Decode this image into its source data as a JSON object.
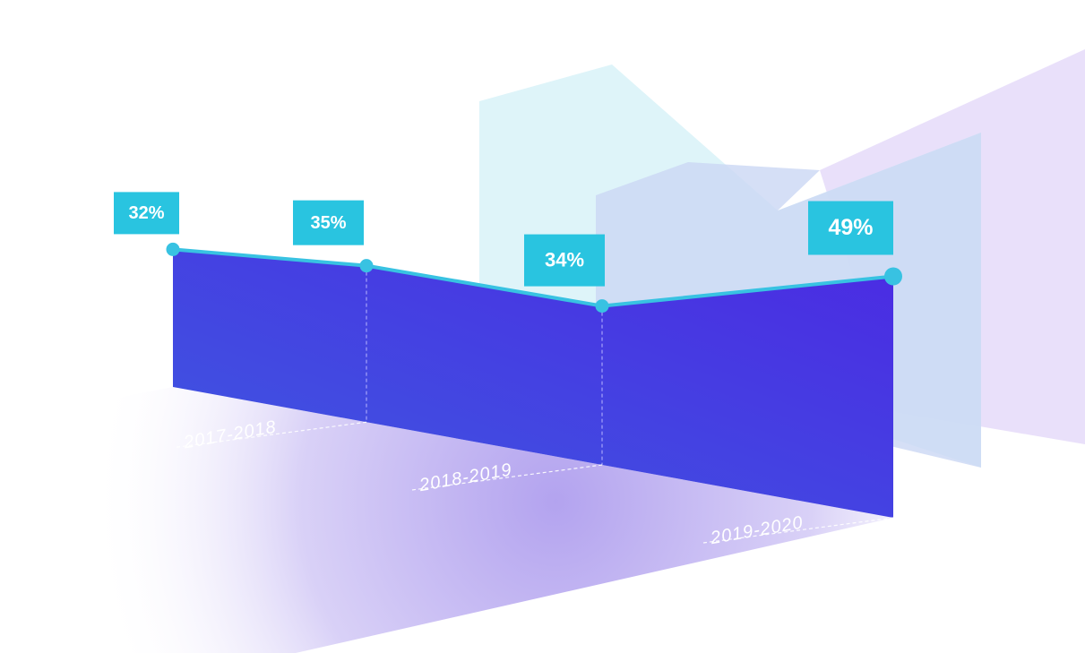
{
  "chart_data": {
    "type": "area",
    "categories": [
      null,
      "2017-2018",
      "2018-2019",
      "2019-2020"
    ],
    "values": [
      32,
      35,
      34,
      49
    ],
    "value_labels": [
      "32%",
      "35%",
      "34%",
      "49%"
    ],
    "color": "#4a33e0",
    "line_color": "#38c2e2",
    "label_color": "#29c4e0"
  }
}
